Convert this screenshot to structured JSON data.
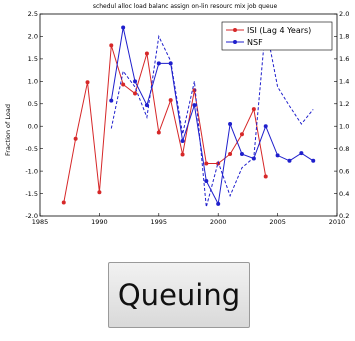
{
  "chart_data": {
    "type": "line",
    "title": "schedul alloc load balanc assign on-lin resourc mix job queue",
    "xlabel": "",
    "ylabel": "Fraction of Load",
    "xlim": [
      1985,
      2010
    ],
    "ylim": [
      -2.0,
      2.5
    ],
    "y2lim": [
      0.2,
      2.0
    ],
    "x_ticks": [
      "1985",
      "1990",
      "1995",
      "2000",
      "2005",
      "2010"
    ],
    "y_ticks": [
      "-2.0",
      "-1.5",
      "-1.0",
      "-0.5",
      "0.0",
      "0.5",
      "1.0",
      "1.5",
      "2.0",
      "2.5"
    ],
    "y2_ticks": [
      "0.2",
      "0.4",
      "0.6",
      "0.8",
      "1.0",
      "1.2",
      "1.4",
      "1.6",
      "1.8",
      "2.0"
    ],
    "legend_position": "top-right",
    "series": [
      {
        "name": "ISI (Lag 4 Years)",
        "color": "#d62728",
        "style": "solid",
        "axis": "left",
        "x": [
          1987,
          1988,
          1989,
          1990,
          1991,
          1992,
          1993,
          1994,
          1995,
          1996,
          1997,
          1998,
          1999,
          2000,
          2001,
          2002,
          2003,
          2004
        ],
        "y": [
          -1.7,
          -0.28,
          0.98,
          -1.47,
          1.8,
          0.93,
          0.73,
          1.62,
          -0.14,
          0.58,
          -0.63,
          0.8,
          -0.83,
          -0.83,
          -0.62,
          -0.18,
          0.38,
          -1.12
        ]
      },
      {
        "name": "NSF",
        "color": "#1f1fcc",
        "style": "solid",
        "axis": "left",
        "x": [
          1991,
          1992,
          1993,
          1994,
          1995,
          1996,
          1997,
          1998,
          1999,
          2000,
          2001,
          2002,
          2003,
          2004,
          2005,
          2006,
          2007,
          2008
        ],
        "y": [
          0.57,
          2.2,
          1.0,
          0.47,
          1.4,
          1.4,
          -0.33,
          0.47,
          -1.22,
          -1.73,
          0.05,
          -0.62,
          -0.72,
          0.0,
          -0.65,
          -0.77,
          -0.6,
          -0.77
        ]
      },
      {
        "name": "",
        "color": "#1f1fcc",
        "style": "dashed",
        "axis": "right",
        "x": [
          1991,
          1992,
          1993,
          1994,
          1995,
          1996,
          1997,
          1998,
          1999,
          2000,
          2001,
          2002,
          2003,
          2004,
          2005,
          2006,
          2007,
          2008
        ],
        "y": [
          0.98,
          1.49,
          1.35,
          1.08,
          1.8,
          1.58,
          0.93,
          1.4,
          0.28,
          0.68,
          0.38,
          0.63,
          0.72,
          1.9,
          1.35,
          1.18,
          1.02,
          1.15
        ]
      }
    ]
  },
  "button": {
    "label": "Queuing"
  }
}
